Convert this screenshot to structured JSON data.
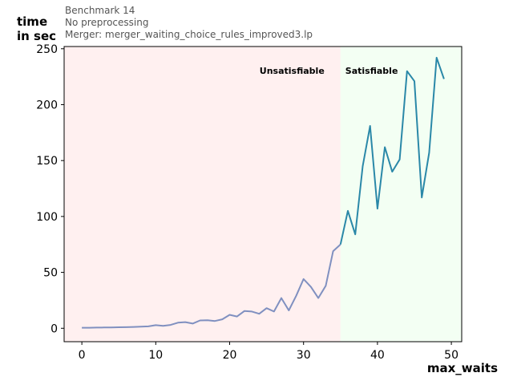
{
  "chart_data": {
    "type": "line",
    "title_lines": [
      "Benchmark 14",
      "No preprocessing",
      "Merger: merger_waiting_choice_rules_improved3.lp"
    ],
    "xlabel": "max_waits",
    "ylabel_lines": [
      "time",
      "in sec"
    ],
    "xlim": [
      -2.4,
      51.4
    ],
    "ylim": [
      -12,
      252
    ],
    "xticks": [
      0,
      10,
      20,
      30,
      40,
      50
    ],
    "yticks": [
      0,
      50,
      100,
      150,
      200,
      250
    ],
    "grid": false,
    "regions": [
      {
        "label": "Unsatisfiable",
        "x_from": -2.4,
        "x_to": 35,
        "color": "#fff0f0"
      },
      {
        "label": "Satisfiable",
        "x_from": 35,
        "x_to": 51.4,
        "color": "#f3fff3"
      }
    ],
    "series": [
      {
        "color": "#8090c0",
        "points": [
          [
            0,
            0.5
          ],
          [
            1,
            0.5
          ],
          [
            2,
            0.6
          ],
          [
            3,
            0.7
          ],
          [
            4,
            0.8
          ],
          [
            5,
            0.9
          ],
          [
            6,
            1.0
          ],
          [
            7,
            1.2
          ],
          [
            8,
            1.5
          ],
          [
            9,
            1.7
          ],
          [
            10,
            2.8
          ],
          [
            11,
            2.2
          ],
          [
            12,
            3.0
          ],
          [
            13,
            5.0
          ],
          [
            14,
            5.5
          ],
          [
            15,
            4.2
          ],
          [
            16,
            7.0
          ],
          [
            17,
            7.2
          ],
          [
            18,
            6.5
          ],
          [
            19,
            8.0
          ],
          [
            20,
            12.0
          ],
          [
            21,
            10.5
          ],
          [
            22,
            15.5
          ],
          [
            23,
            15.0
          ],
          [
            24,
            13.0
          ],
          [
            25,
            18.0
          ],
          [
            26,
            15.0
          ],
          [
            27,
            27.0
          ],
          [
            28,
            16.0
          ],
          [
            29,
            29.0
          ],
          [
            30,
            44.0
          ],
          [
            31,
            37.0
          ],
          [
            32,
            27.0
          ],
          [
            33,
            38.0
          ],
          [
            34,
            69.0
          ],
          [
            35,
            75.0
          ]
        ]
      },
      {
        "color": "#2a88a8",
        "points": [
          [
            35,
            75.0
          ],
          [
            36,
            105.0
          ],
          [
            37,
            84.0
          ],
          [
            38,
            145.0
          ],
          [
            39,
            181.0
          ],
          [
            40,
            107.0
          ],
          [
            41,
            162.0
          ],
          [
            42,
            140.0
          ],
          [
            43,
            151.0
          ],
          [
            44,
            230.0
          ],
          [
            45,
            221.0
          ],
          [
            46,
            117.0
          ],
          [
            47,
            157.0
          ],
          [
            48,
            242.0
          ],
          [
            49,
            223.0
          ]
        ]
      }
    ]
  }
}
